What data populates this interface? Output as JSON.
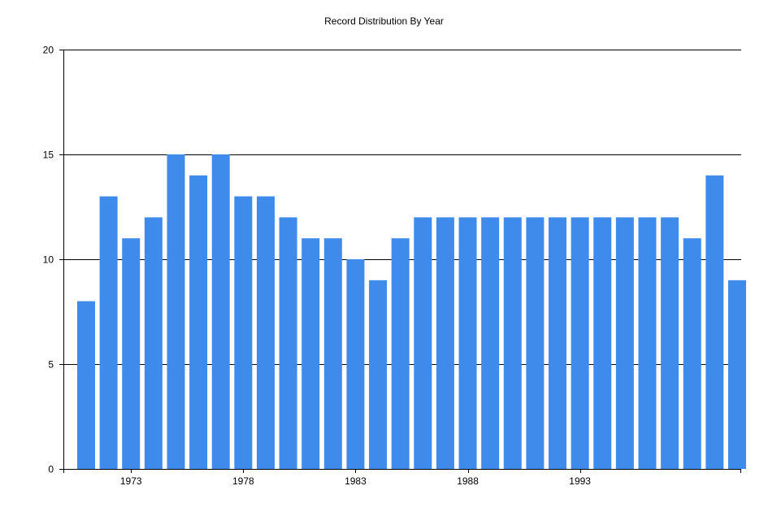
{
  "chart_data": {
    "type": "bar",
    "title": "Record Distribution By Year",
    "xlabel": "",
    "ylabel": "",
    "ylim": [
      0,
      20
    ],
    "yticks": [
      "0",
      "5",
      "10",
      "15",
      "20"
    ],
    "grid": "horizontal",
    "x": [
      1971,
      1972,
      1973,
      1974,
      1975,
      1976,
      1977,
      1978,
      1979,
      1980,
      1981,
      1982,
      1983,
      1984,
      1985,
      1986,
      1987,
      1988,
      1989,
      1990,
      1991,
      1992,
      1993,
      1994,
      1995,
      1996,
      1997,
      1998,
      1999,
      2000
    ],
    "values": [
      8,
      13,
      11,
      12,
      15,
      14,
      15,
      13,
      13,
      12,
      11,
      11,
      10,
      9,
      11,
      12,
      12,
      12,
      12,
      12,
      12,
      12,
      12,
      12,
      12,
      12,
      12,
      11,
      14,
      9
    ],
    "xtick_labels": [
      "1973",
      "1978",
      "1983",
      "1988",
      "1993"
    ],
    "bar_color": "#3f8bec"
  }
}
